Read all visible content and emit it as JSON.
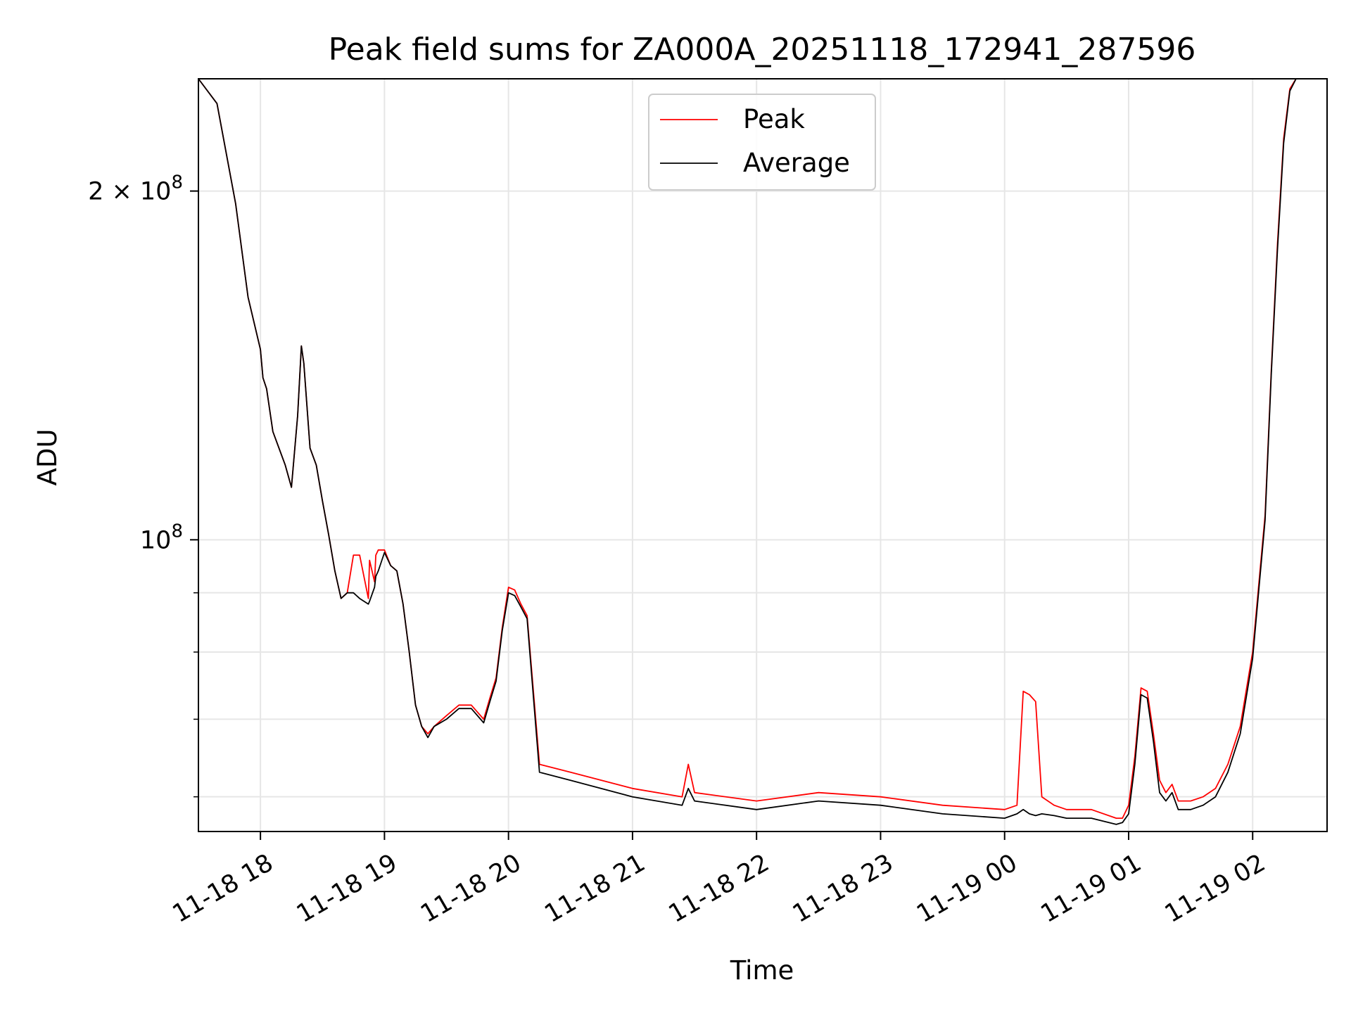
{
  "chart_data": {
    "type": "line",
    "title": "Peak field sums for ZA000A_20251118_172941_287596",
    "xlabel": "Time",
    "ylabel": "ADU",
    "yscale": "log",
    "ylim": [
      56000000,
      250000000
    ],
    "x_units": "hours since 2025-11-18 17:30",
    "xlim": [
      0.0,
      9.1
    ],
    "grid": true,
    "legend_position": "top-center",
    "x_ticks": [
      {
        "value": 0.5,
        "label": "11-18 18"
      },
      {
        "value": 1.5,
        "label": "11-18 19"
      },
      {
        "value": 2.5,
        "label": "11-18 20"
      },
      {
        "value": 3.5,
        "label": "11-18 21"
      },
      {
        "value": 4.5,
        "label": "11-18 22"
      },
      {
        "value": 5.5,
        "label": "11-18 23"
      },
      {
        "value": 6.5,
        "label": "11-19 00"
      },
      {
        "value": 7.5,
        "label": "11-19 01"
      },
      {
        "value": 8.5,
        "label": "11-19 02"
      }
    ],
    "y_major_ticks": [
      {
        "value": 100000000,
        "mantissa": "",
        "base": "10",
        "exp": "8"
      },
      {
        "value": 200000000,
        "mantissa": "2 × ",
        "base": "10",
        "exp": "8"
      }
    ],
    "y_minor_ticks": [
      60000000,
      70000000,
      80000000,
      90000000
    ],
    "series": [
      {
        "name": "Peak",
        "color": "#ff0000",
        "x": [
          0.0,
          0.15,
          0.3,
          0.4,
          0.5,
          0.52,
          0.55,
          0.6,
          0.7,
          0.75,
          0.8,
          0.83,
          0.85,
          0.9,
          0.95,
          1.0,
          1.05,
          1.1,
          1.15,
          1.2,
          1.25,
          1.3,
          1.37,
          1.38,
          1.42,
          1.43,
          1.45,
          1.5,
          1.55,
          1.6,
          1.65,
          1.7,
          1.75,
          1.8,
          1.85,
          1.9,
          2.0,
          2.1,
          2.2,
          2.3,
          2.35,
          2.4,
          2.45,
          2.5,
          2.55,
          2.6,
          2.65,
          2.75,
          3.0,
          3.5,
          3.9,
          3.95,
          4.0,
          4.5,
          5.0,
          5.5,
          6.0,
          6.5,
          6.6,
          6.65,
          6.7,
          6.75,
          6.8,
          6.9,
          7.0,
          7.2,
          7.4,
          7.45,
          7.5,
          7.55,
          7.6,
          7.65,
          7.7,
          7.75,
          7.8,
          7.85,
          7.9,
          8.0,
          8.1,
          8.2,
          8.3,
          8.4,
          8.5,
          8.6,
          8.65,
          8.7,
          8.75,
          8.8,
          8.85,
          9.1
        ],
        "y": [
          250000000,
          238000000,
          195000000,
          162000000,
          146000000,
          138000000,
          135000000,
          124000000,
          116000000,
          111000000,
          128000000,
          147000000,
          142000000,
          120000000,
          116000000,
          108000000,
          101000000,
          94000000,
          89000000,
          90000000,
          97000000,
          97000000,
          89000000,
          96000000,
          92000000,
          97000000,
          98000000,
          98000000,
          95000000,
          94000000,
          88000000,
          80000000,
          72000000,
          69000000,
          68000000,
          69000000,
          70500000,
          72000000,
          72000000,
          70000000,
          73000000,
          76000000,
          84000000,
          91000000,
          90500000,
          88000000,
          86000000,
          64000000,
          63000000,
          61000000,
          60000000,
          64000000,
          60500000,
          59500000,
          60500000,
          60000000,
          59000000,
          58500000,
          59000000,
          74000000,
          73500000,
          72500000,
          60000000,
          59000000,
          58500000,
          58500000,
          57500000,
          57500000,
          59000000,
          65000000,
          74500000,
          74000000,
          68000000,
          62000000,
          60500000,
          61500000,
          59500000,
          59500000,
          60000000,
          61000000,
          64000000,
          69000000,
          80000000,
          105000000,
          140000000,
          180000000,
          222000000,
          245000000,
          250000000,
          250000000
        ]
      },
      {
        "name": "Average",
        "color": "#000000",
        "x": [
          0.0,
          0.15,
          0.3,
          0.4,
          0.5,
          0.52,
          0.55,
          0.6,
          0.7,
          0.75,
          0.8,
          0.83,
          0.85,
          0.9,
          0.95,
          1.0,
          1.05,
          1.1,
          1.15,
          1.2,
          1.25,
          1.3,
          1.37,
          1.38,
          1.42,
          1.43,
          1.45,
          1.5,
          1.55,
          1.6,
          1.65,
          1.7,
          1.75,
          1.8,
          1.85,
          1.9,
          2.0,
          2.1,
          2.2,
          2.3,
          2.35,
          2.4,
          2.45,
          2.5,
          2.55,
          2.6,
          2.65,
          2.75,
          3.0,
          3.5,
          3.9,
          3.95,
          4.0,
          4.5,
          5.0,
          5.5,
          6.0,
          6.5,
          6.6,
          6.65,
          6.7,
          6.75,
          6.8,
          6.9,
          7.0,
          7.2,
          7.4,
          7.45,
          7.5,
          7.55,
          7.6,
          7.65,
          7.7,
          7.75,
          7.8,
          7.85,
          7.9,
          8.0,
          8.1,
          8.2,
          8.3,
          8.4,
          8.5,
          8.6,
          8.65,
          8.7,
          8.75,
          8.8,
          8.85,
          9.1
        ],
        "y": [
          250000000,
          238000000,
          195000000,
          162000000,
          146000000,
          138000000,
          135000000,
          124000000,
          116000000,
          111000000,
          128000000,
          147000000,
          142000000,
          120000000,
          116000000,
          108000000,
          101000000,
          94000000,
          89000000,
          90000000,
          90000000,
          89000000,
          88000000,
          88500000,
          91000000,
          93000000,
          94000000,
          97500000,
          95000000,
          94000000,
          88000000,
          80000000,
          72000000,
          69000000,
          67500000,
          69000000,
          70000000,
          71500000,
          71500000,
          69500000,
          72500000,
          75500000,
          83500000,
          90000000,
          89500000,
          87500000,
          85500000,
          63000000,
          62000000,
          60000000,
          59000000,
          61000000,
          59500000,
          58500000,
          59500000,
          59000000,
          58000000,
          57500000,
          58000000,
          58500000,
          58000000,
          57800000,
          58000000,
          57800000,
          57500000,
          57500000,
          56800000,
          57000000,
          58000000,
          64000000,
          73500000,
          73000000,
          67000000,
          60500000,
          59500000,
          60500000,
          58500000,
          58500000,
          59000000,
          60000000,
          63000000,
          68000000,
          79000000,
          104000000,
          139000000,
          178000000,
          220000000,
          244000000,
          250000000,
          250000000
        ]
      }
    ]
  }
}
